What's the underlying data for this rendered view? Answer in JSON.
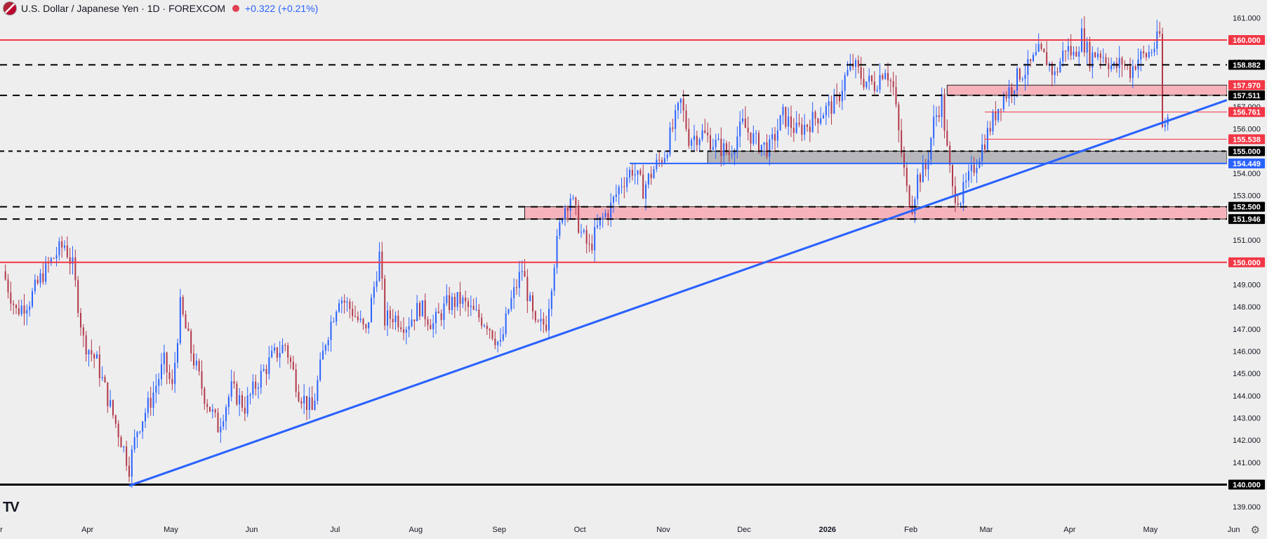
{
  "header": {
    "title": "U.S. Dollar / Japanese Yen · 1D · FOREXCOM",
    "change": "+0.322 (+0.21%)"
  },
  "logo_text": "TV",
  "settings_icon": "gear-icon",
  "colors": {
    "background": "#eeeeee",
    "up": "#2962ff",
    "down": "#b2384a",
    "red_line": "#f23645",
    "trendline": "#2962ff"
  },
  "chart_data": {
    "type": "candlestick",
    "title": "U.S. Dollar / Japanese Yen · 1D · FOREXCOM",
    "ylim": [
      138.5,
      161.8
    ],
    "y_ticks": [
      139,
      140,
      141,
      142,
      143,
      144,
      145,
      146,
      147,
      148,
      149,
      150,
      151,
      152,
      153,
      154,
      155,
      156,
      157,
      158,
      159,
      160,
      161
    ],
    "x_ticks": [
      "r",
      "Apr",
      "May",
      "Jun",
      "Jul",
      "Aug",
      "Sep",
      "Oct",
      "Nov",
      "Dec",
      "2026",
      "Feb",
      "Mar",
      "Apr",
      "May",
      "Jun"
    ],
    "x_range_days": [
      -1,
      455
    ],
    "close_series": [
      {
        "day": 0,
        "value": 149.6
      },
      {
        "day": 5,
        "value": 147.8
      },
      {
        "day": 10,
        "value": 148.3
      },
      {
        "day": 15,
        "value": 149.5
      },
      {
        "day": 20,
        "value": 150.4
      },
      {
        "day": 23,
        "value": 150.8
      },
      {
        "day": 26,
        "value": 149.8
      },
      {
        "day": 30,
        "value": 146.5
      },
      {
        "day": 35,
        "value": 145.5
      },
      {
        "day": 40,
        "value": 143.5
      },
      {
        "day": 44,
        "value": 142.0
      },
      {
        "day": 47,
        "value": 140.8
      },
      {
        "day": 50,
        "value": 142.5
      },
      {
        "day": 55,
        "value": 143.8
      },
      {
        "day": 60,
        "value": 145.5
      },
      {
        "day": 63,
        "value": 144.3
      },
      {
        "day": 66,
        "value": 148.0
      },
      {
        "day": 70,
        "value": 146.0
      },
      {
        "day": 75,
        "value": 144.0
      },
      {
        "day": 80,
        "value": 142.6
      },
      {
        "day": 85,
        "value": 144.3
      },
      {
        "day": 90,
        "value": 143.5
      },
      {
        "day": 95,
        "value": 144.7
      },
      {
        "day": 100,
        "value": 145.7
      },
      {
        "day": 105,
        "value": 146.3
      },
      {
        "day": 110,
        "value": 144.2
      },
      {
        "day": 115,
        "value": 143.3
      },
      {
        "day": 120,
        "value": 146.5
      },
      {
        "day": 125,
        "value": 148.5
      },
      {
        "day": 130,
        "value": 147.8
      },
      {
        "day": 135,
        "value": 146.8
      },
      {
        "day": 140,
        "value": 150.3
      },
      {
        "day": 142,
        "value": 147.4
      },
      {
        "day": 145,
        "value": 147.6
      },
      {
        "day": 150,
        "value": 147.2
      },
      {
        "day": 155,
        "value": 148.0
      },
      {
        "day": 160,
        "value": 147.2
      },
      {
        "day": 165,
        "value": 148.1
      },
      {
        "day": 170,
        "value": 148.3
      },
      {
        "day": 175,
        "value": 147.7
      },
      {
        "day": 180,
        "value": 147.3
      },
      {
        "day": 185,
        "value": 146.2
      },
      {
        "day": 188,
        "value": 147.9
      },
      {
        "day": 193,
        "value": 149.7
      },
      {
        "day": 198,
        "value": 147.0
      },
      {
        "day": 202,
        "value": 147.3
      },
      {
        "day": 205,
        "value": 150.1
      },
      {
        "day": 208,
        "value": 152.3
      },
      {
        "day": 211,
        "value": 153.0
      },
      {
        "day": 215,
        "value": 151.3
      },
      {
        "day": 218,
        "value": 150.6
      },
      {
        "day": 222,
        "value": 151.8
      },
      {
        "day": 226,
        "value": 152.5
      },
      {
        "day": 230,
        "value": 153.6
      },
      {
        "day": 234,
        "value": 154.2
      },
      {
        "day": 238,
        "value": 153.3
      },
      {
        "day": 242,
        "value": 154.2
      },
      {
        "day": 246,
        "value": 154.9
      },
      {
        "day": 250,
        "value": 156.4
      },
      {
        "day": 252,
        "value": 157.2
      },
      {
        "day": 255,
        "value": 155.6
      },
      {
        "day": 260,
        "value": 155.8
      },
      {
        "day": 265,
        "value": 155.3
      },
      {
        "day": 270,
        "value": 154.9
      },
      {
        "day": 275,
        "value": 156.2
      },
      {
        "day": 280,
        "value": 155.4
      },
      {
        "day": 285,
        "value": 155.1
      },
      {
        "day": 290,
        "value": 156.6
      },
      {
        "day": 295,
        "value": 155.9
      },
      {
        "day": 300,
        "value": 156.3
      },
      {
        "day": 305,
        "value": 156.8
      },
      {
        "day": 310,
        "value": 157.2
      },
      {
        "day": 313,
        "value": 158.3
      },
      {
        "day": 316,
        "value": 158.9
      },
      {
        "day": 320,
        "value": 158.2
      },
      {
        "day": 324,
        "value": 158.0
      },
      {
        "day": 328,
        "value": 158.8
      },
      {
        "day": 331,
        "value": 157.8
      },
      {
        "day": 333,
        "value": 155.8
      },
      {
        "day": 336,
        "value": 153.2
      },
      {
        "day": 338,
        "value": 152.6
      },
      {
        "day": 340,
        "value": 153.8
      },
      {
        "day": 343,
        "value": 154.2
      },
      {
        "day": 346,
        "value": 156.3
      },
      {
        "day": 349,
        "value": 157.3
      },
      {
        "day": 351,
        "value": 155.0
      },
      {
        "day": 353,
        "value": 153.2
      },
      {
        "day": 356,
        "value": 152.9
      },
      {
        "day": 360,
        "value": 154.0
      },
      {
        "day": 364,
        "value": 155.2
      },
      {
        "day": 367,
        "value": 156.1
      },
      {
        "day": 371,
        "value": 157.3
      },
      {
        "day": 375,
        "value": 157.9
      },
      {
        "day": 378,
        "value": 158.5
      },
      {
        "day": 381,
        "value": 158.7
      },
      {
        "day": 385,
        "value": 159.4
      },
      {
        "day": 388,
        "value": 159.1
      },
      {
        "day": 391,
        "value": 158.4
      },
      {
        "day": 395,
        "value": 159.7
      },
      {
        "day": 398,
        "value": 159.3
      },
      {
        "day": 401,
        "value": 160.2
      },
      {
        "day": 404,
        "value": 159.2
      },
      {
        "day": 407,
        "value": 159.5
      },
      {
        "day": 410,
        "value": 159.2
      },
      {
        "day": 413,
        "value": 158.7
      },
      {
        "day": 416,
        "value": 159.0
      },
      {
        "day": 419,
        "value": 158.6
      },
      {
        "day": 422,
        "value": 159.2
      },
      {
        "day": 425,
        "value": 159.3
      },
      {
        "day": 428,
        "value": 159.7
      },
      {
        "day": 430,
        "value": 160.2
      },
      {
        "day": 431,
        "value": 156.0
      },
      {
        "day": 433,
        "value": 156.5
      }
    ],
    "horizontal_lines": [
      {
        "value": 160.0,
        "label": "160.000",
        "style": "solid",
        "color": "#f23645"
      },
      {
        "value": 158.882,
        "label": "158.882",
        "style": "dashed",
        "color": "#000000"
      },
      {
        "value": 157.511,
        "label": "157.511",
        "style": "dashed",
        "color": "#000000"
      },
      {
        "value": 155.0,
        "label": "155.000",
        "style": "dashed",
        "color": "#000000"
      },
      {
        "value": 152.5,
        "label": "152.500",
        "style": "dashed",
        "color": "#000000"
      },
      {
        "value": 151.946,
        "label": "151.946",
        "style": "dashed",
        "color": "#000000"
      },
      {
        "value": 150.0,
        "label": "150.000",
        "style": "solid",
        "color": "#f23645"
      },
      {
        "value": 140.0,
        "label": "140.000",
        "style": "solid",
        "color": "#000000"
      }
    ],
    "zones": [
      {
        "from": 157.511,
        "to": 157.97,
        "start_day": 351,
        "color": "#f6b3bb",
        "label": "157.970"
      },
      {
        "from": 154.449,
        "to": 155.0,
        "start_day": 262,
        "color": "#b7b7bb",
        "label": "154.449"
      },
      {
        "from": 151.946,
        "to": 152.5,
        "start_day": 194,
        "color": "#f6b3bb"
      }
    ],
    "thin_lines": [
      {
        "value": 156.761,
        "start_day": 365,
        "label": "156.761"
      },
      {
        "value": 155.538,
        "start_day": 365,
        "label": "155.538"
      }
    ],
    "support_blue_line": {
      "value": 154.449,
      "start_day": 233
    },
    "trendline": {
      "start": {
        "day": 47,
        "value": 139.95
      },
      "end": {
        "day": 455,
        "value": 157.3
      }
    },
    "price_labels": [
      {
        "value": 160.0,
        "text": "160.000",
        "bg": "#f23645",
        "fg": "#ffffff"
      },
      {
        "value": 158.882,
        "text": "158.882",
        "bg": "#000000",
        "fg": "#ffffff"
      },
      {
        "value": 157.97,
        "text": "157.970",
        "bg": "#f23645",
        "fg": "#ffffff"
      },
      {
        "value": 157.511,
        "text": "157.511",
        "bg": "#000000",
        "fg": "#ffffff"
      },
      {
        "value": 156.761,
        "text": "156.761",
        "bg": "#f23645",
        "fg": "#ffffff"
      },
      {
        "value": 155.538,
        "text": "155.538",
        "bg": "#f23645",
        "fg": "#ffffff"
      },
      {
        "value": 155.0,
        "text": "155.000",
        "bg": "#000000",
        "fg": "#ffffff"
      },
      {
        "value": 154.449,
        "text": "154.449",
        "bg": "#2962ff",
        "fg": "#ffffff"
      },
      {
        "value": 152.5,
        "text": "152.500",
        "bg": "#000000",
        "fg": "#ffffff"
      },
      {
        "value": 151.946,
        "text": "151.946",
        "bg": "#000000",
        "fg": "#ffffff"
      },
      {
        "value": 150.0,
        "text": "150.000",
        "bg": "#f23645",
        "fg": "#ffffff"
      },
      {
        "value": 140.0,
        "text": "140.000",
        "bg": "#000000",
        "fg": "#ffffff"
      }
    ]
  }
}
